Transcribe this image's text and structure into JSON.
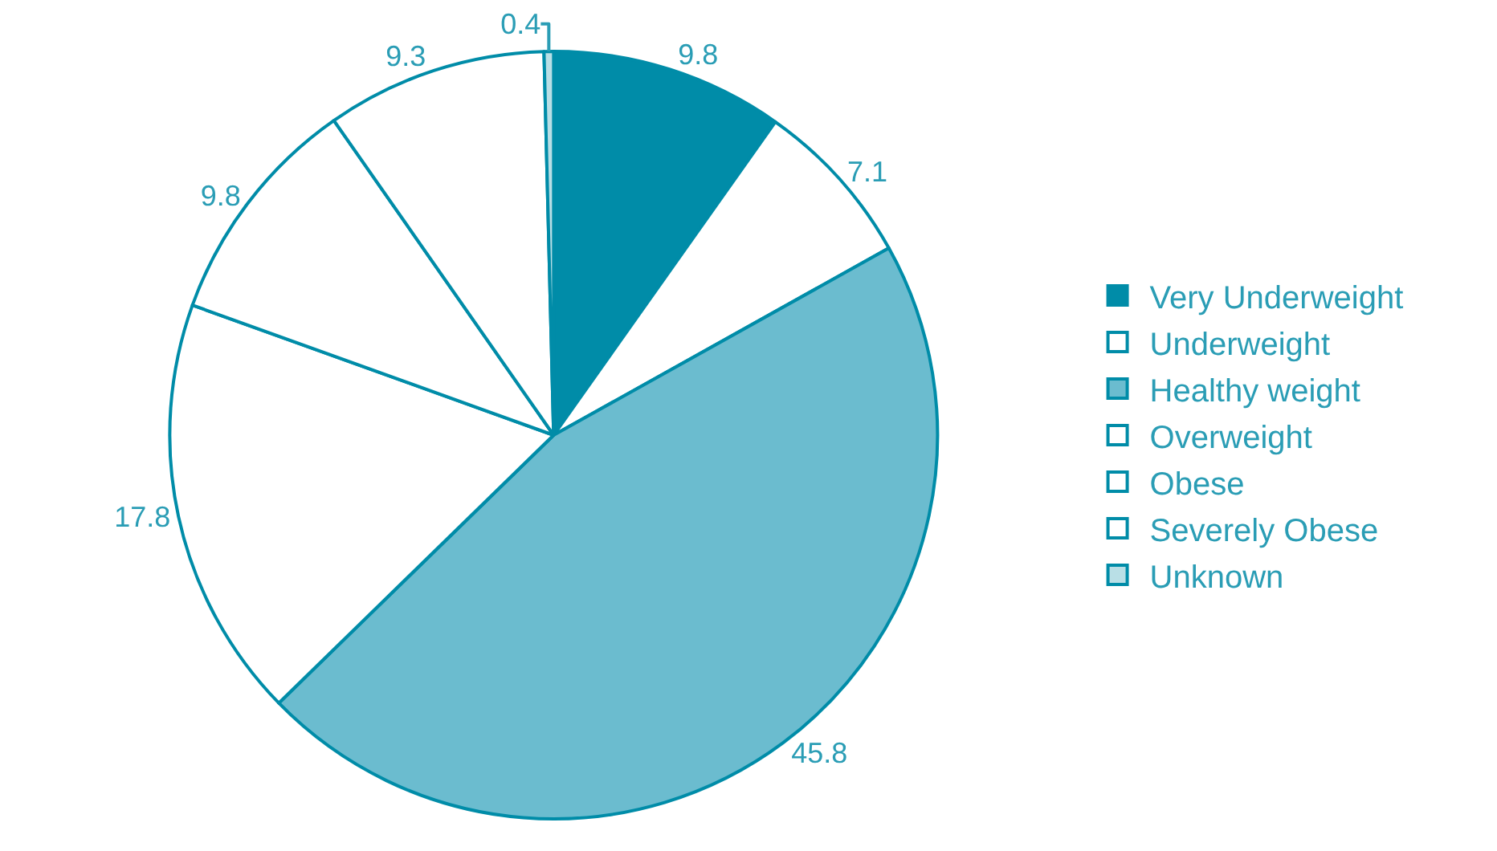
{
  "chart_data": {
    "type": "pie",
    "categories": [
      "Very Underweight",
      "Underweight",
      "Healthy weight",
      "Overweight",
      "Obese",
      "Severely Obese",
      "Unknown"
    ],
    "values": [
      9.8,
      7.1,
      45.8,
      17.8,
      9.8,
      9.3,
      0.4
    ],
    "colors": [
      "#008ca8",
      "#ffffff",
      "#6bbccf",
      "#ffffff",
      "#ffffff",
      "#ffffff",
      "#b9dfe6"
    ],
    "data_labels": true,
    "legend": "right"
  }
}
